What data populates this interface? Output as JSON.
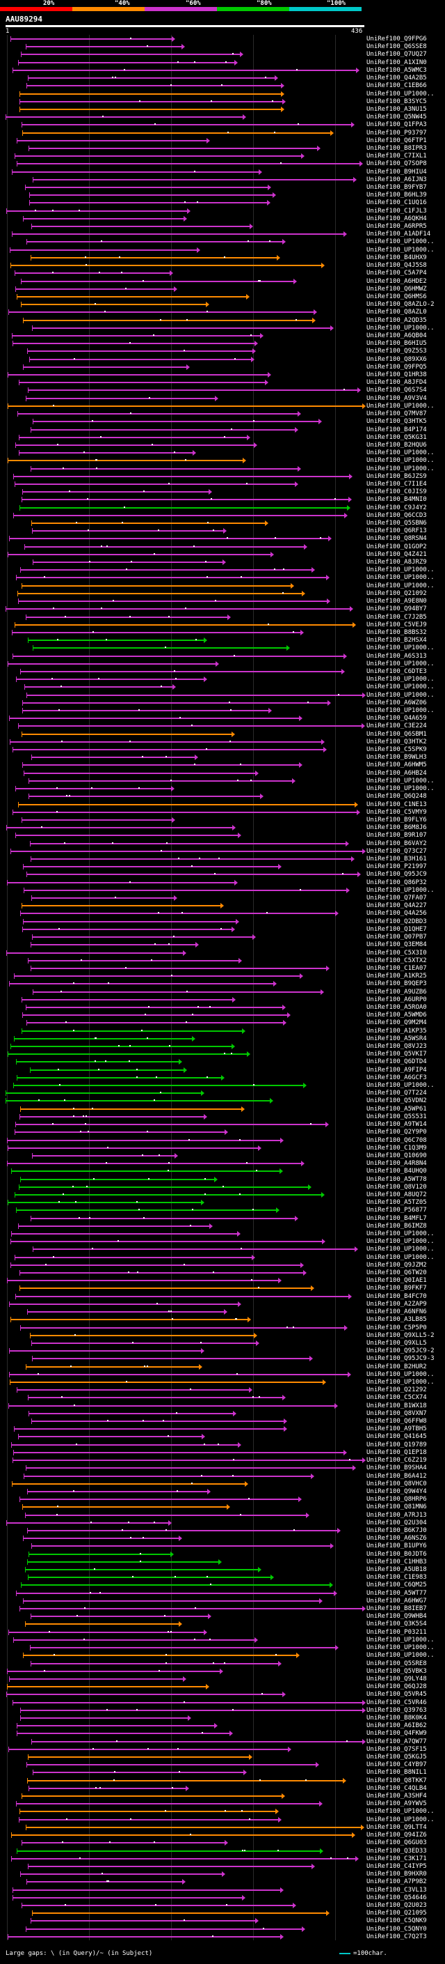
{
  "header": {
    "percent_labels": [
      "20%",
      "\"40%",
      "\"60%",
      "\"80%",
      "\"100%"
    ],
    "colors": [
      "#ff0000",
      "#ff8a00",
      "#cc33cc",
      "#00c800",
      "#00c8c8"
    ],
    "query_id": "AAU89294",
    "query_start": "1",
    "query_end": "436"
  },
  "palette": {
    "magenta": "#cc33cc",
    "orange": "#ff8a00",
    "green": "#00c800",
    "cyan": "#00c8c8"
  },
  "hits": [
    "UniRef100_Q9FPG6",
    "UniRef100_Q6SSE8",
    "UniRef100_Q7UQ27",
    "UniRef100_A1XIN0",
    "UniRef100_A5WMC3",
    "UniRef100_Q4A2B5",
    "UniRef100_C1EB66",
    "UniRef100_UP1000..",
    "UniRef100_B3SYC5",
    "UniRef100_A3NU15",
    "UniRef100_Q5NW45",
    "UniRef100_Q1FPA3",
    "UniRef100_P93797",
    "UniRef100_Q6FTP1",
    "UniRef100_B8IPR3",
    "UniRef100_C7IXL1",
    "UniRef100_Q7SOP8",
    "UniRef100_B9HIU4",
    "UniRef100_A6IJN3",
    "UniRef100_B9FYB7",
    "UniRef100_B6HL39",
    "UniRef100_C1UQ16",
    "UniRef100_C1FJL3",
    "UniRef100_A6QKH4",
    "UniRef100_A6RPR5",
    "UniRef100_A1ADF14",
    "UniRef100_UP1000..",
    "UniRef100_UP1000..",
    "UniRef100_B4UHX9",
    "UniRef100_Q4J5S8",
    "UniRef100_C5A7P4",
    "UniRef100_A6HDE2",
    "UniRef100_Q6HMWZ",
    "UniRef100_Q6HMS6",
    "UniRef100_Q8AZLO-2",
    "UniRef100_Q8AZL0",
    "UniRef100_A2QD35",
    "UniRef100_UP1000..",
    "UniRef100_A6QB04",
    "UniRef100_B6HIU5",
    "UniRef100_Q9Z5S3",
    "UniRef100_Q89XX6",
    "UniRef100_Q9FPQ5",
    "UniRef100_Q1HR38",
    "UniRef100_A8JFD4",
    "UniRef100_Q6S7S4",
    "UniRef100_A9V3V4",
    "UniRef100_UP1000..",
    "UniRef100_Q7MV87",
    "UniRef100_Q3HTK5",
    "UniRef100_B4P174",
    "UniRef100_Q5KG31",
    "UniRef100_B2HQU6",
    "UniRef100_UP1000..",
    "UniRef100_UP1000..",
    "UniRef100_UP1000..",
    "UniRef100_B6JZS9",
    "UniRef100_C7I1E4",
    "UniRef100_C0JIS9",
    "UniRef100_B4MNI0",
    "UniRef100_C9J4Y2",
    "UniRef100_Q6CCD3",
    "UniRef100_Q5SBN6",
    "UniRef100_Q6RF13",
    "UniRef100_Q8RSN4",
    "UniRef100_Q1GOP2",
    "UniRef100_Q4Z421",
    "UniRef100_A8JRZ9",
    "UniRef100_UP1000..",
    "UniRef100_UP1000..",
    "UniRef100_UP1000..",
    "UniRef100_Q21092",
    "UniRef100_A9E8N0",
    "UniRef100_Q94BY7",
    "UniRef100_C7J2B5",
    "UniRef100_C5VEJ9",
    "UniRef100_B8BS32",
    "UniRef100_B2HSX4",
    "UniRef100_UP1000..",
    "UniRef100_A6S313",
    "UniRef100_UP1000..",
    "UniRef100_C6DTE3",
    "UniRef100_UP1000..",
    "UniRef100_UP1000..",
    "UniRef100_UP1000..",
    "UniRef100_A6WZ06",
    "UniRef100_UP1000..",
    "UniRef100_Q4A659",
    "UniRef100_C3E224",
    "UniRef100_Q6SBM1",
    "UniRef100_Q3HTK2",
    "UniRef100_C5SPK9",
    "UniRef100_B9WLH3",
    "UniRef100_A6HWM5",
    "UniRef100_A6HB24",
    "UniRef100_UP1000..",
    "UniRef100_UP1000..",
    "UniRef100_Q6Q248",
    "UniRef100_C1NE13",
    "UniRef100_C5VMY9",
    "UniRef100_B9FLY6",
    "UniRef100_B6M8J6",
    "UniRef100_B9R107",
    "UniRef100_B6VAY2",
    "UniRef100_Q73C27",
    "UniRef100_B3H161",
    "UniRef100_P21997",
    "UniRef100_Q95JC9",
    "UniRef100_Q86P32",
    "UniRef100_UP1000..",
    "UniRef100_Q7FA07",
    "UniRef100_Q4A227",
    "UniRef100_Q4A256",
    "UniRef100_Q2DBD3",
    "UniRef100_Q1QHE7",
    "UniRef100_Q07PB7",
    "UniRef100_Q3EM84",
    "UniRef100_C5X3I0",
    "UniRef100_C5XTX2",
    "UniRef100_C1EA07",
    "UniRef100_A1KR25",
    "UniRef100_B9QEP3",
    "UniRef100_A9UZB6",
    "UniRef100_A6URP0",
    "UniRef100_A5ROA0",
    "UniRef100_A5WMD6",
    "UniRef100_Q9M2M4",
    "UniRef100_A1KP35",
    "UniRef100_A5WSR4",
    "UniRef100_Q8VJ23",
    "UniRef100_Q5VKI7",
    "UniRef100_Q6DTD4",
    "UniRef100_A9FIP4",
    "UniRef100_A6GCF3",
    "UniRef100_UP1000..",
    "UniRef100_Q7T224",
    "UniRef100_Q5VDN2",
    "UniRef100_A5WP61",
    "UniRef100_Q5S531",
    "UniRef100_A9TW14",
    "UniRef100_Q2Y9P0",
    "UniRef100_Q6C708",
    "UniRef100_C1Q3M9",
    "UniRef100_Q10690",
    "UniRef100_A4R8N4",
    "UniRef100_B4UHQ0",
    "UniRef100_A5WT78",
    "UniRef100_Q8V120",
    "UniRef100_A8UQ72",
    "UniRef100_A5TZ05",
    "UniRef100_P56877",
    "UniRef100_B4MFL7",
    "UniRef100_B6IMZ8",
    "UniRef100_UP1000..",
    "UniRef100_UP1000..",
    "UniRef100_UP1000..",
    "UniRef100_UP1000..",
    "UniRef100_Q9JZM2",
    "UniRef100_Q6TW20",
    "UniRef100_Q0IAE1",
    "UniRef100_B9FKF7",
    "UniRef100_B4FC70",
    "UniRef100_A2ZAP9",
    "UniRef100_A6NFN6",
    "UniRef100_A3LB85",
    "UniRef100_C5P5P0",
    "UniRef100_Q9XLL5-2",
    "UniRef100_Q9XLL5",
    "UniRef100_Q95JC9-2",
    "UniRef100_Q95JC9-3",
    "UniRef100_B2HUR2",
    "UniRef100_UP1000..",
    "UniRef100_UP1000..",
    "UniRef100_Q21292",
    "UniRef100_C5CX74",
    "UniRef100_B1WX18",
    "UniRef100_Q8VXN7",
    "UniRef100_Q6FFW8",
    "UniRef100_A9TBH5",
    "UniRef100_Q41645",
    "UniRef100_Q19789",
    "UniRef100_Q1EP18",
    "UniRef100_C6Z219",
    "UniRef100_B9SHA4",
    "UniRef100_B6A412",
    "UniRef100_Q8VHC0",
    "UniRef100_Q9W4Y4",
    "UniRef100_Q8HRP6",
    "UniRef100_Q81MN6",
    "UniRef100_A7RJ13",
    "UniRef100_Q2U304",
    "UniRef100_B6K7J0",
    "UniRef100_A6NSZ6",
    "UniRef100_B1UPY6",
    "UniRef100_B0JDT6",
    "UniRef100_C1HHB3",
    "UniRef100_A5UB18",
    "UniRef100_C1E983",
    "UniRef100_C6QM25",
    "UniRef100_A5WT77",
    "UniRef100_A6HWG7",
    "UniRef100_B8IEB7",
    "UniRef100_Q9WHB4",
    "UniRef100_Q3K5S4",
    "UniRef100_P03211",
    "UniRef100_UP1000..",
    "UniRef100_UP1000..",
    "UniRef100_UP1000..",
    "UniRef100_Q5SRE8",
    "UniRef100_Q5VBK3",
    "UniRef100_Q9LY48",
    "UniRef100_Q6QJ28",
    "UniRef100_Q5VR45",
    "UniRef100_C5VR46",
    "UniRef100_Q39763",
    "UniRef100_B8K0K4",
    "UniRef100_A6IB62",
    "UniRef100_Q4FKW9",
    "UniRef100_A7QW77",
    "UniRef100_Q7SF15",
    "UniRef100_Q5KGJ5",
    "UniRef100_C4YB97",
    "UniRef100_B8NIL1",
    "UniRef100_Q8TKK7",
    "UniRef100_C4QLB4",
    "UniRef100_A3SHF4",
    "UniRef100_A9YWV5",
    "UniRef100_UP1000..",
    "UniRef100_UP1000..",
    "UniRef100_Q9LTT4",
    "UniRef100_Q94IZ6",
    "UniRef100_Q6GU03",
    "UniRef100_Q3ED33",
    "UniRef100_C3K171",
    "UniRef100_C4IYP5",
    "UniRef100_B9HXR0",
    "UniRef100_A7P9B2",
    "UniRef100_C3VL13",
    "UniRef100_Q54646",
    "UniRef100_Q2U023",
    "UniRef100_Q21095",
    "UniRef100_C5QNK9",
    "UniRef100_C5QNY0",
    "UniRef100_C7Q2T3"
  ],
  "legend": {
    "text": "Large gaps: \\ (in Query)/~ (in Subject)",
    "scale_text": "=100char."
  }
}
